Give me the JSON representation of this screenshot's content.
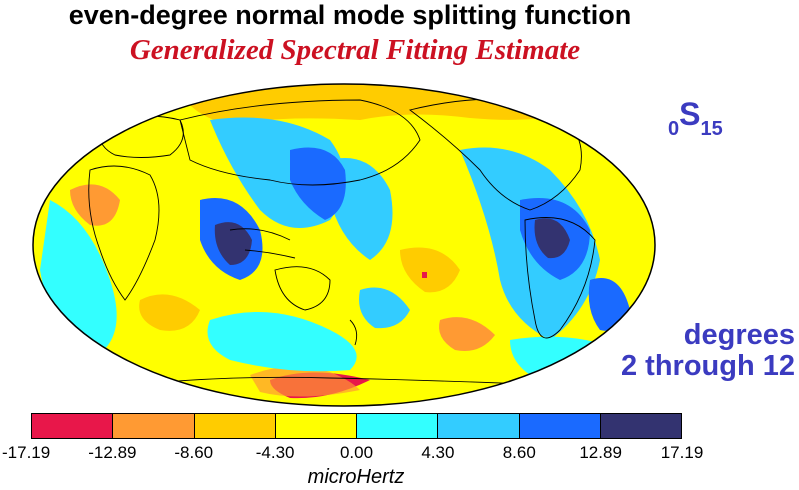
{
  "title": "even-degree normal mode splitting function",
  "subtitle": "Generalized Spectral Fitting Estimate",
  "mode_label": {
    "prefix": "0",
    "letter": "S",
    "suffix": "15"
  },
  "degrees_label": {
    "line1": "degrees",
    "line2": "2 through 12"
  },
  "colorbar": {
    "colors": [
      "#e8174a",
      "#ff9a33",
      "#ffcc00",
      "#ffff00",
      "#33ffff",
      "#33ccff",
      "#1a6aff",
      "#333370"
    ],
    "ticks": [
      "-17.19",
      "-12.89",
      "-8.60",
      "-4.30",
      "0.00",
      "4.30",
      "8.60",
      "12.89",
      "17.19"
    ],
    "units": "microHertz"
  },
  "map": {
    "projection": "Mollweide",
    "background_color": "#ffff00",
    "coastline_color": "#000000"
  }
}
